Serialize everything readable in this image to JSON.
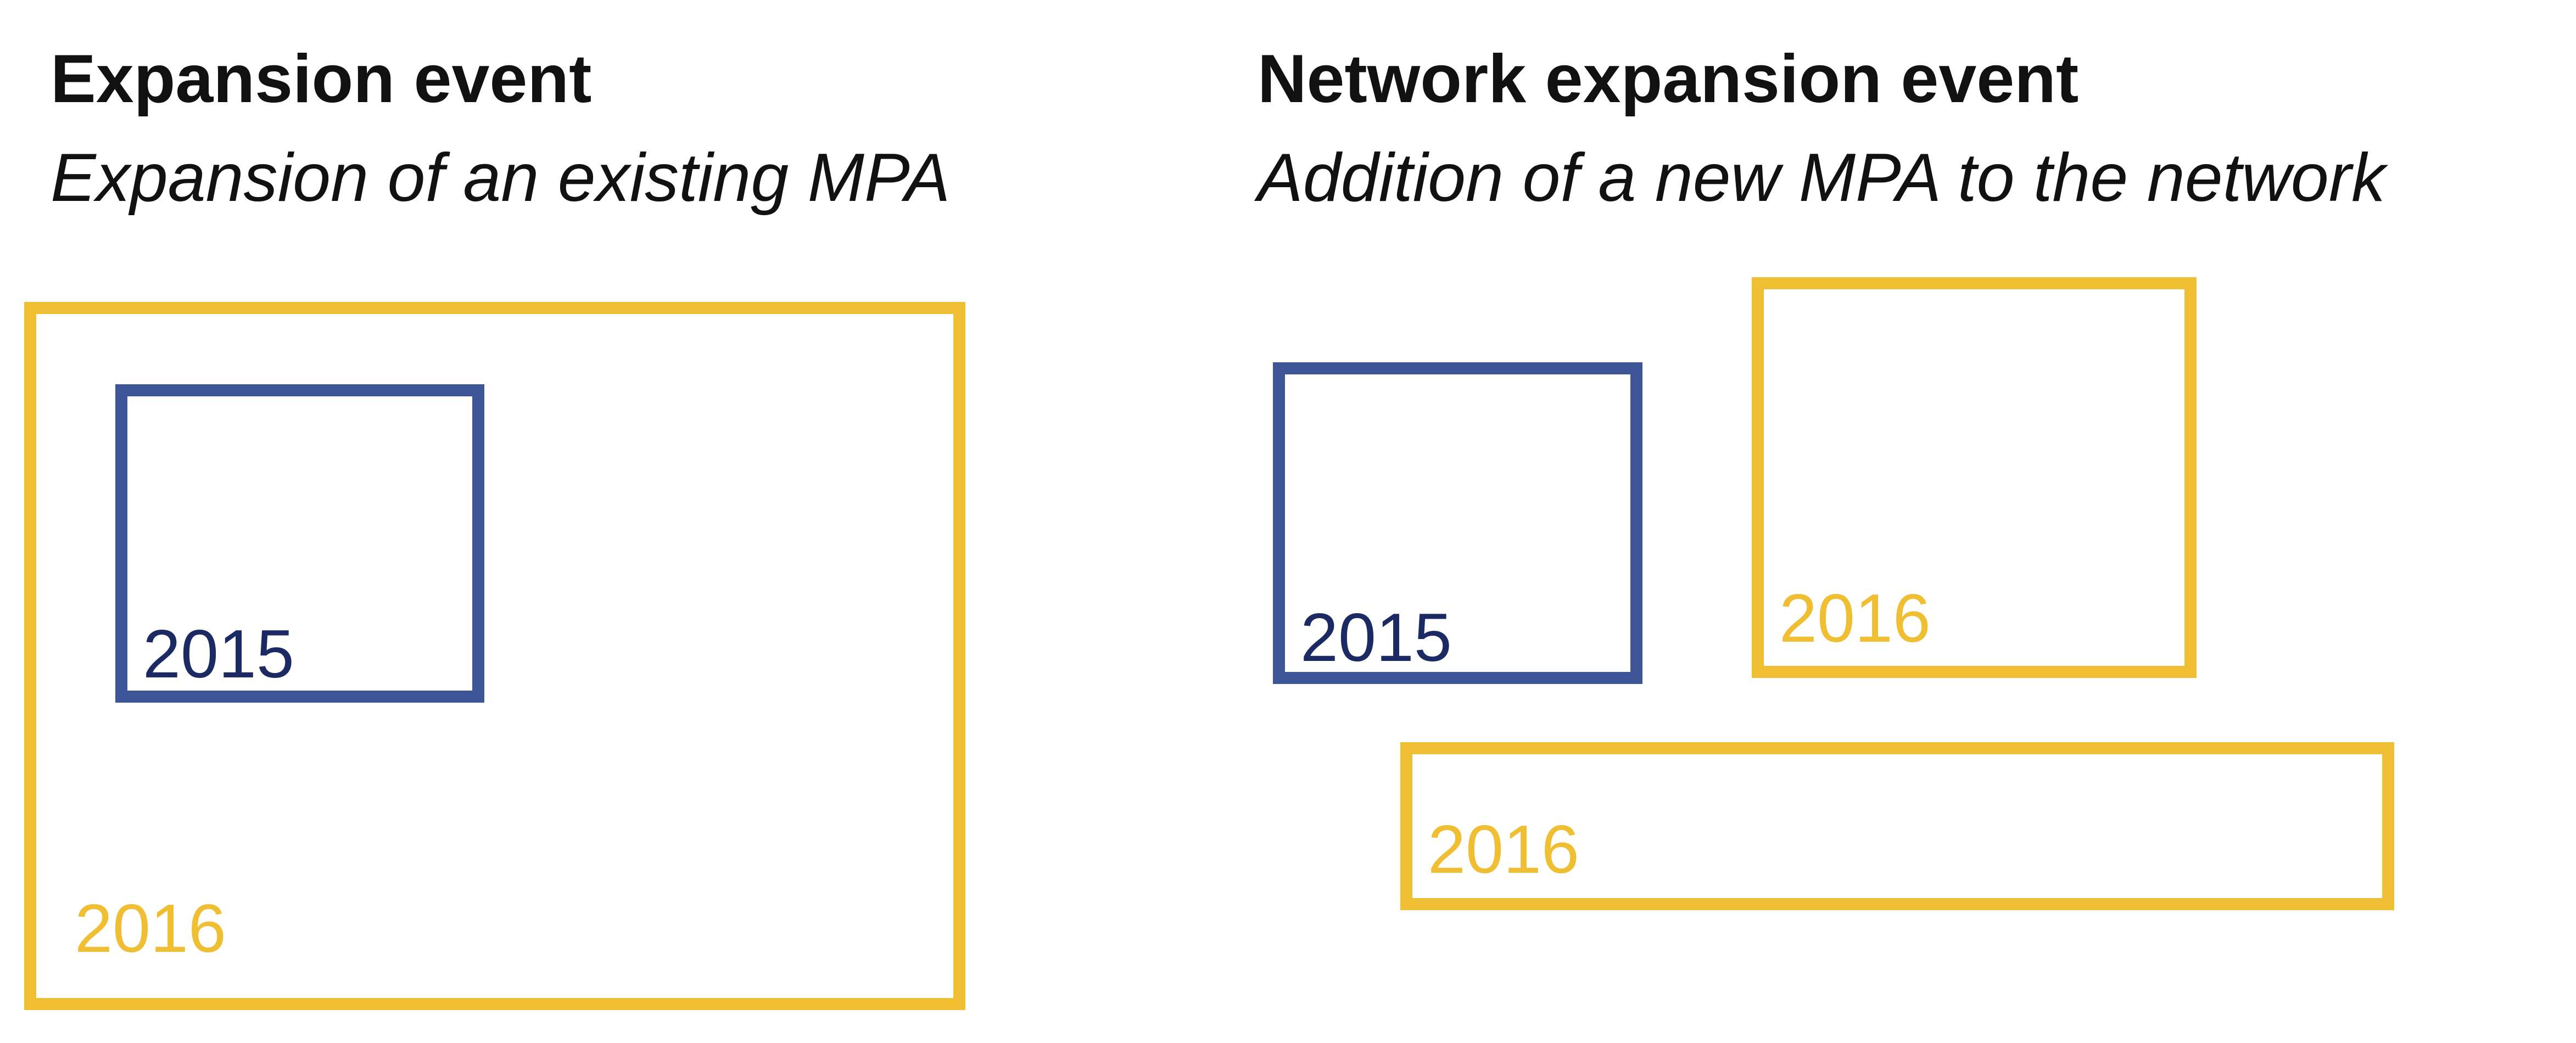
{
  "colors": {
    "mpa_2015": "#3d5496",
    "mpa_2016": "#f0be32",
    "label_2015": "#1c2a64",
    "label_2016": "#f0be32",
    "text": "#111111"
  },
  "panels": {
    "expansion": {
      "title": "Expansion event",
      "subtitle": "Expansion of an existing MPA",
      "boxes": [
        {
          "year": "2016"
        },
        {
          "year": "2015"
        }
      ]
    },
    "network_expansion": {
      "title": "Network expansion event",
      "subtitle": "Addition of a new MPA to the network",
      "boxes": [
        {
          "year": "2015"
        },
        {
          "year": "2016"
        },
        {
          "year": "2016"
        }
      ]
    }
  }
}
